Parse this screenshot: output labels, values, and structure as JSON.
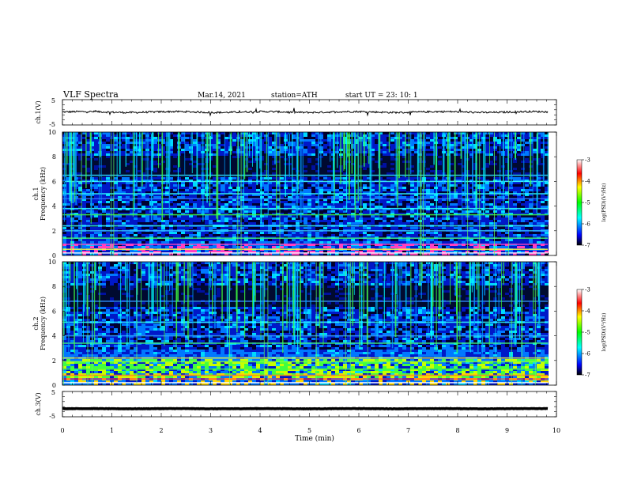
{
  "header": {
    "title": "VLF  Spectra",
    "date": "Mar.14, 2021",
    "station": "station=ATH",
    "start": "start  UT  =    23: 10: 1"
  },
  "chart_data": [
    {
      "type": "line",
      "ylabel": "ch.1(V)",
      "ylim": [
        -5,
        5
      ],
      "yticks": [
        "5",
        "-5"
      ],
      "level": 0.1,
      "amplitude": 0.7
    },
    {
      "type": "heatmap",
      "ylabel_top": "ch.1",
      "ylabel": "Frequency (kHz)",
      "ylim": [
        0,
        10
      ],
      "yticks": [
        "0",
        "2",
        "4",
        "6",
        "8",
        "10"
      ],
      "colorbar": {
        "label": "log(PSD)(V²/Hz)",
        "range": [
          -7,
          -3
        ],
        "ticks": [
          "-3",
          "-4",
          "-5",
          "-6",
          "-7"
        ],
        "colors": [
          "#000000",
          "#0000ff",
          "#00ffff",
          "#00ff00",
          "#ffff00",
          "#ff0000",
          "#ffffff"
        ]
      }
    },
    {
      "type": "heatmap",
      "ylabel_top": "ch.2",
      "ylabel": "Frequency (kHz)",
      "ylim": [
        0,
        10
      ],
      "yticks": [
        "0",
        "2",
        "4",
        "6",
        "8",
        "10"
      ],
      "colorbar": {
        "label": "log(PSD)(V²/Hz)",
        "range": [
          -7,
          -3
        ],
        "ticks": [
          "-3",
          "-4",
          "-5",
          "-6",
          "-7"
        ],
        "colors": [
          "#000000",
          "#0000ff",
          "#00ffff",
          "#00ff00",
          "#ffff00",
          "#ff0000",
          "#ffffff"
        ]
      }
    },
    {
      "type": "line",
      "ylabel": "ch.3(V)",
      "ylim": [
        -5,
        5
      ],
      "yticks": [
        "5",
        "-5"
      ],
      "level": -1.8,
      "amplitude": 0.15
    }
  ],
  "xaxis": {
    "label": "Time  (min)",
    "xlim": [
      0,
      10
    ],
    "ticks": [
      "0",
      "1",
      "2",
      "3",
      "4",
      "5",
      "6",
      "7",
      "8",
      "9",
      "10"
    ]
  }
}
